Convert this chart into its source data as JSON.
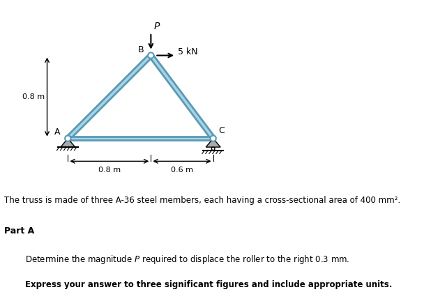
{
  "bg_color": "#ffffff",
  "truss_fill": "#a8d4e6",
  "truss_edge": "#5a9ab5",
  "truss_lw": 2.0,
  "member_thickness": 0.042,
  "A": [
    0.0,
    0.0
  ],
  "B": [
    0.8,
    0.8
  ],
  "C": [
    1.4,
    0.0
  ],
  "dim_08": "0.8 m",
  "dim_06": "0.6 m",
  "dim_height": "0.8 m",
  "label_A": "A",
  "label_B": "B",
  "label_C": "C",
  "label_P": "P",
  "label_5kN": "5 kN"
}
